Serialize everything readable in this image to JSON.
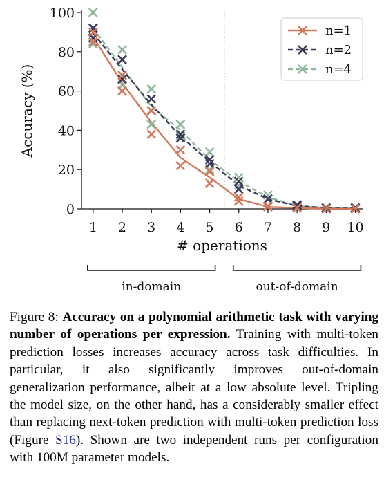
{
  "chart_data": {
    "type": "line",
    "x": [
      1,
      2,
      3,
      4,
      5,
      6,
      7,
      8,
      9,
      10
    ],
    "xlabel": "# operations",
    "ylabel": "Accuracy (%)",
    "ylim": [
      0,
      100
    ],
    "yticks": [
      0,
      20,
      40,
      60,
      80,
      100
    ],
    "xticks": [
      1,
      2,
      3,
      4,
      5,
      6,
      7,
      8,
      9,
      10
    ],
    "grid": false,
    "legend_position": "top-right",
    "divider_x": 5.5,
    "series": [
      {
        "name": "n=1",
        "color": "#d4785c",
        "mean": [
          87.5,
          64,
          44,
          26,
          16,
          5,
          1,
          0.5,
          0,
          0
        ],
        "runs": [
          [
            90,
            60,
            38,
            22,
            13,
            4,
            1,
            0.5,
            0,
            0
          ],
          [
            85,
            68,
            50,
            30,
            19,
            6,
            1.5,
            0.5,
            0,
            0
          ]
        ]
      },
      {
        "name": "n=2",
        "color": "#3a3b5c",
        "mean": [
          89.5,
          71,
          53,
          37,
          24,
          12,
          5,
          1.5,
          0.5,
          0.5
        ],
        "runs": [
          [
            92,
            76,
            56,
            38,
            25,
            14,
            5,
            2,
            0.5,
            0.5
          ],
          [
            87,
            66,
            50,
            36,
            23,
            10,
            5,
            1.5,
            0.5,
            0.5
          ]
        ]
      },
      {
        "name": "n=4",
        "color": "#8fb89a",
        "mean": [
          92,
          72,
          52,
          40,
          25,
          14,
          6,
          1.5,
          0.5,
          0.5
        ],
        "runs": [
          [
            100,
            81,
            61,
            43,
            29,
            16,
            7,
            2,
            0.5,
            0.5
          ],
          [
            84,
            63,
            43,
            37,
            20,
            12,
            5,
            1,
            0.5,
            0.5
          ]
        ]
      }
    ],
    "brackets": [
      {
        "label": "in-domain",
        "from": 1,
        "to": 5
      },
      {
        "label": "out-of-domain",
        "from": 6,
        "to": 10
      }
    ]
  },
  "caption": {
    "prefix": "Figure 8: ",
    "bold": "Accuracy on a polynomial arithmetic task with varying number of operations per expression.",
    "text_a": " Training with multi-token prediction losses increases accuracy across task difficulties. In particular, it also significantly improves out-of-domain generalization performance, albeit at a low absolute level. Tripling the model size, on the other hand, has a considerably smaller effect than replacing next-token prediction with multi-token prediction loss (Figure ",
    "ref": "S16",
    "text_b": "). Shown are two independent runs per configuration with 100M parameter models."
  }
}
